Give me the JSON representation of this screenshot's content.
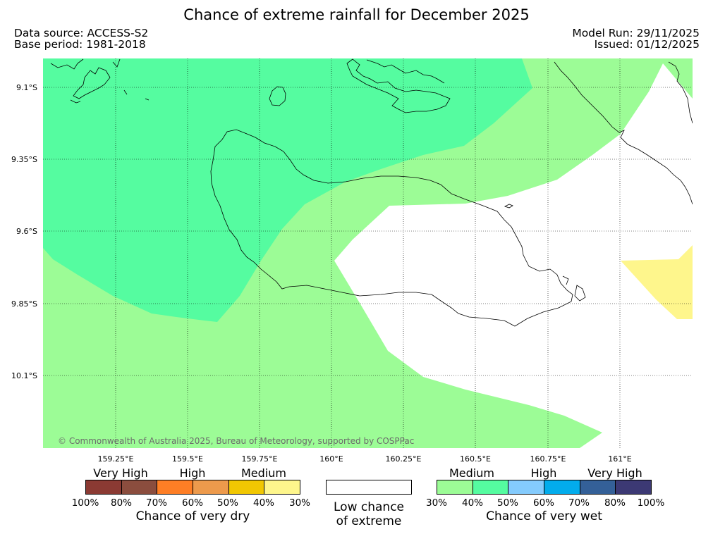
{
  "title": "Chance of extreme rainfall for December 2025",
  "header": {
    "data_source": "Data source: ACCESS-S2",
    "base_period": "Base period: 1981-2018",
    "model_run": "Model Run: 29/11/2025",
    "issued": "Issued: 01/12/2025"
  },
  "map": {
    "lat_ticks": [
      "9.1°S",
      "9.35°S",
      "9.6°S",
      "9.85°S",
      "10.1°S"
    ],
    "lon_ticks": [
      "159.25°E",
      "159.5°E",
      "159.75°E",
      "160°E",
      "160.25°E",
      "160.5°E",
      "160.75°E",
      "161°E"
    ],
    "copyright": "© Commonwealth of Australia 2025, Bureau of Meteorology, supported by COSPPac",
    "colors": {
      "wet_medium": "#9cfc96",
      "wet_high": "#55fca0",
      "dry_medium": "#fef68c",
      "land_outline": "#000000",
      "grid": "#000000"
    }
  },
  "legend": {
    "dry": {
      "categories": [
        "Very High",
        "High",
        "Medium"
      ],
      "colors": [
        "#8b3a33",
        "#8b4d3e",
        "#fe7e25",
        "#ed9a4c",
        "#f1c702",
        "#fef68c"
      ],
      "percent_labels": [
        "100%",
        "80%",
        "70%",
        "60%",
        "50%",
        "40%",
        "30%"
      ],
      "title": "Chance of very dry"
    },
    "low": {
      "line1": "Low chance",
      "line2": "of extreme"
    },
    "wet": {
      "categories": [
        "Medium",
        "High",
        "Very High"
      ],
      "colors": [
        "#9cfc96",
        "#55fca0",
        "#84cbfd",
        "#02acec",
        "#346098",
        "#3c3974"
      ],
      "percent_labels": [
        "30%",
        "40%",
        "50%",
        "60%",
        "70%",
        "80%",
        "100%"
      ],
      "title": "Chance of very wet"
    }
  }
}
